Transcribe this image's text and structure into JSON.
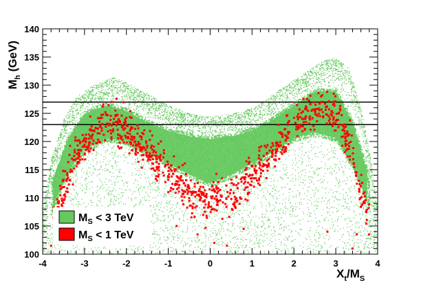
{
  "chart_data": {
    "type": "scatter",
    "title": "",
    "xlabel": {
      "main": "X",
      "sub1": "t",
      "mid": "/M",
      "sub2": "S"
    },
    "ylabel": {
      "main": "M",
      "sub": "h",
      "rest": " (GeV)"
    },
    "xlim": [
      -4,
      4
    ],
    "ylim": [
      100,
      140
    ],
    "x_ticks": [
      -4,
      -3,
      -2,
      -1,
      0,
      1,
      2,
      3,
      4
    ],
    "y_ticks": [
      100,
      105,
      110,
      115,
      120,
      125,
      130,
      135,
      140
    ],
    "y_tick_labels": [
      "100",
      "105",
      "110",
      "115",
      "120",
      "125",
      "130",
      "135",
      "140"
    ],
    "x_tick_labels": [
      "-4",
      "-3",
      "-2",
      "-1",
      "0",
      "1",
      "2",
      "3",
      "4"
    ],
    "grid": false,
    "legend_position": "bottom-left",
    "horizontal_lines": [
      123,
      127
    ],
    "colors": {
      "green": "#66c95f",
      "red": "#ff0000",
      "line": "#000000"
    },
    "series": [
      {
        "name": {
          "main": "M",
          "sub": "S",
          "rest": " < 3 TeV"
        },
        "color": "#66c95f",
        "marker": "dot",
        "envelope_upper": [
          [
            -4,
            108
          ],
          [
            -3.8,
            117
          ],
          [
            -3.5,
            124
          ],
          [
            -3.2,
            128
          ],
          [
            -2.8,
            130
          ],
          [
            -2.3,
            131.5
          ],
          [
            -2,
            130.5
          ],
          [
            -1.5,
            128.5
          ],
          [
            -1,
            126.5
          ],
          [
            -0.5,
            125
          ],
          [
            0,
            124.5
          ],
          [
            0.5,
            125
          ],
          [
            1,
            126
          ],
          [
            1.5,
            128.5
          ],
          [
            2,
            131
          ],
          [
            2.3,
            132.5
          ],
          [
            2.7,
            134.5
          ],
          [
            3,
            135
          ],
          [
            3.3,
            133
          ],
          [
            3.6,
            126
          ],
          [
            3.8,
            118
          ],
          [
            4,
            108
          ]
        ],
        "envelope_lower": 100,
        "dense_band_upper": [
          [
            -3.8,
            113
          ],
          [
            -3.4,
            121
          ],
          [
            -3,
            125.5
          ],
          [
            -2.5,
            127
          ],
          [
            -2,
            126
          ],
          [
            -1.5,
            124
          ],
          [
            -1,
            122.5
          ],
          [
            -0.5,
            121.5
          ],
          [
            0,
            121
          ],
          [
            0.5,
            121.5
          ],
          [
            1,
            122.5
          ],
          [
            1.5,
            124.5
          ],
          [
            2,
            127
          ],
          [
            2.5,
            129.5
          ],
          [
            3,
            129.5
          ],
          [
            3.4,
            124
          ],
          [
            3.8,
            114
          ]
        ],
        "dense_band_lower": [
          [
            -3.8,
            107
          ],
          [
            -3.4,
            114
          ],
          [
            -3,
            118
          ],
          [
            -2.5,
            120
          ],
          [
            -2,
            119.5
          ],
          [
            -1.5,
            117.5
          ],
          [
            -1,
            115.5
          ],
          [
            -0.5,
            113.5
          ],
          [
            0,
            112
          ],
          [
            0.5,
            113.5
          ],
          [
            1,
            115.5
          ],
          [
            1.5,
            117.5
          ],
          [
            2,
            120
          ],
          [
            2.5,
            121
          ],
          [
            3,
            120
          ],
          [
            3.4,
            115
          ],
          [
            3.8,
            108
          ]
        ]
      },
      {
        "name": {
          "main": "M",
          "sub": "S",
          "rest": " < 1 TeV"
        },
        "color": "#ff0000",
        "marker": "square",
        "trend": [
          [
            -3.7,
            107
          ],
          [
            -3.3,
            116
          ],
          [
            -3,
            119.5
          ],
          [
            -2.6,
            123
          ],
          [
            -2.3,
            124
          ],
          [
            -2,
            122
          ],
          [
            -1.5,
            118.5
          ],
          [
            -1,
            114.5
          ],
          [
            -0.5,
            110.5
          ],
          [
            0,
            109.5
          ],
          [
            0.5,
            110.5
          ],
          [
            1,
            114.5
          ],
          [
            1.5,
            118.5
          ],
          [
            2,
            122.5
          ],
          [
            2.3,
            125
          ],
          [
            2.6,
            125.5
          ],
          [
            3,
            125
          ],
          [
            3.3,
            120
          ],
          [
            3.6,
            112
          ],
          [
            3.8,
            105
          ]
        ],
        "spread": 2.4,
        "outliers": [
          [
            0.1,
            102
          ],
          [
            -0.3,
            103.5
          ],
          [
            0.4,
            101.5
          ],
          [
            2.8,
            104
          ],
          [
            3.5,
            103.5
          ],
          [
            -3.8,
            101.5
          ],
          [
            -3.6,
            102.5
          ],
          [
            3.4,
            101
          ],
          [
            0.8,
            104.5
          ],
          [
            -0.8,
            105
          ]
        ]
      }
    ]
  }
}
